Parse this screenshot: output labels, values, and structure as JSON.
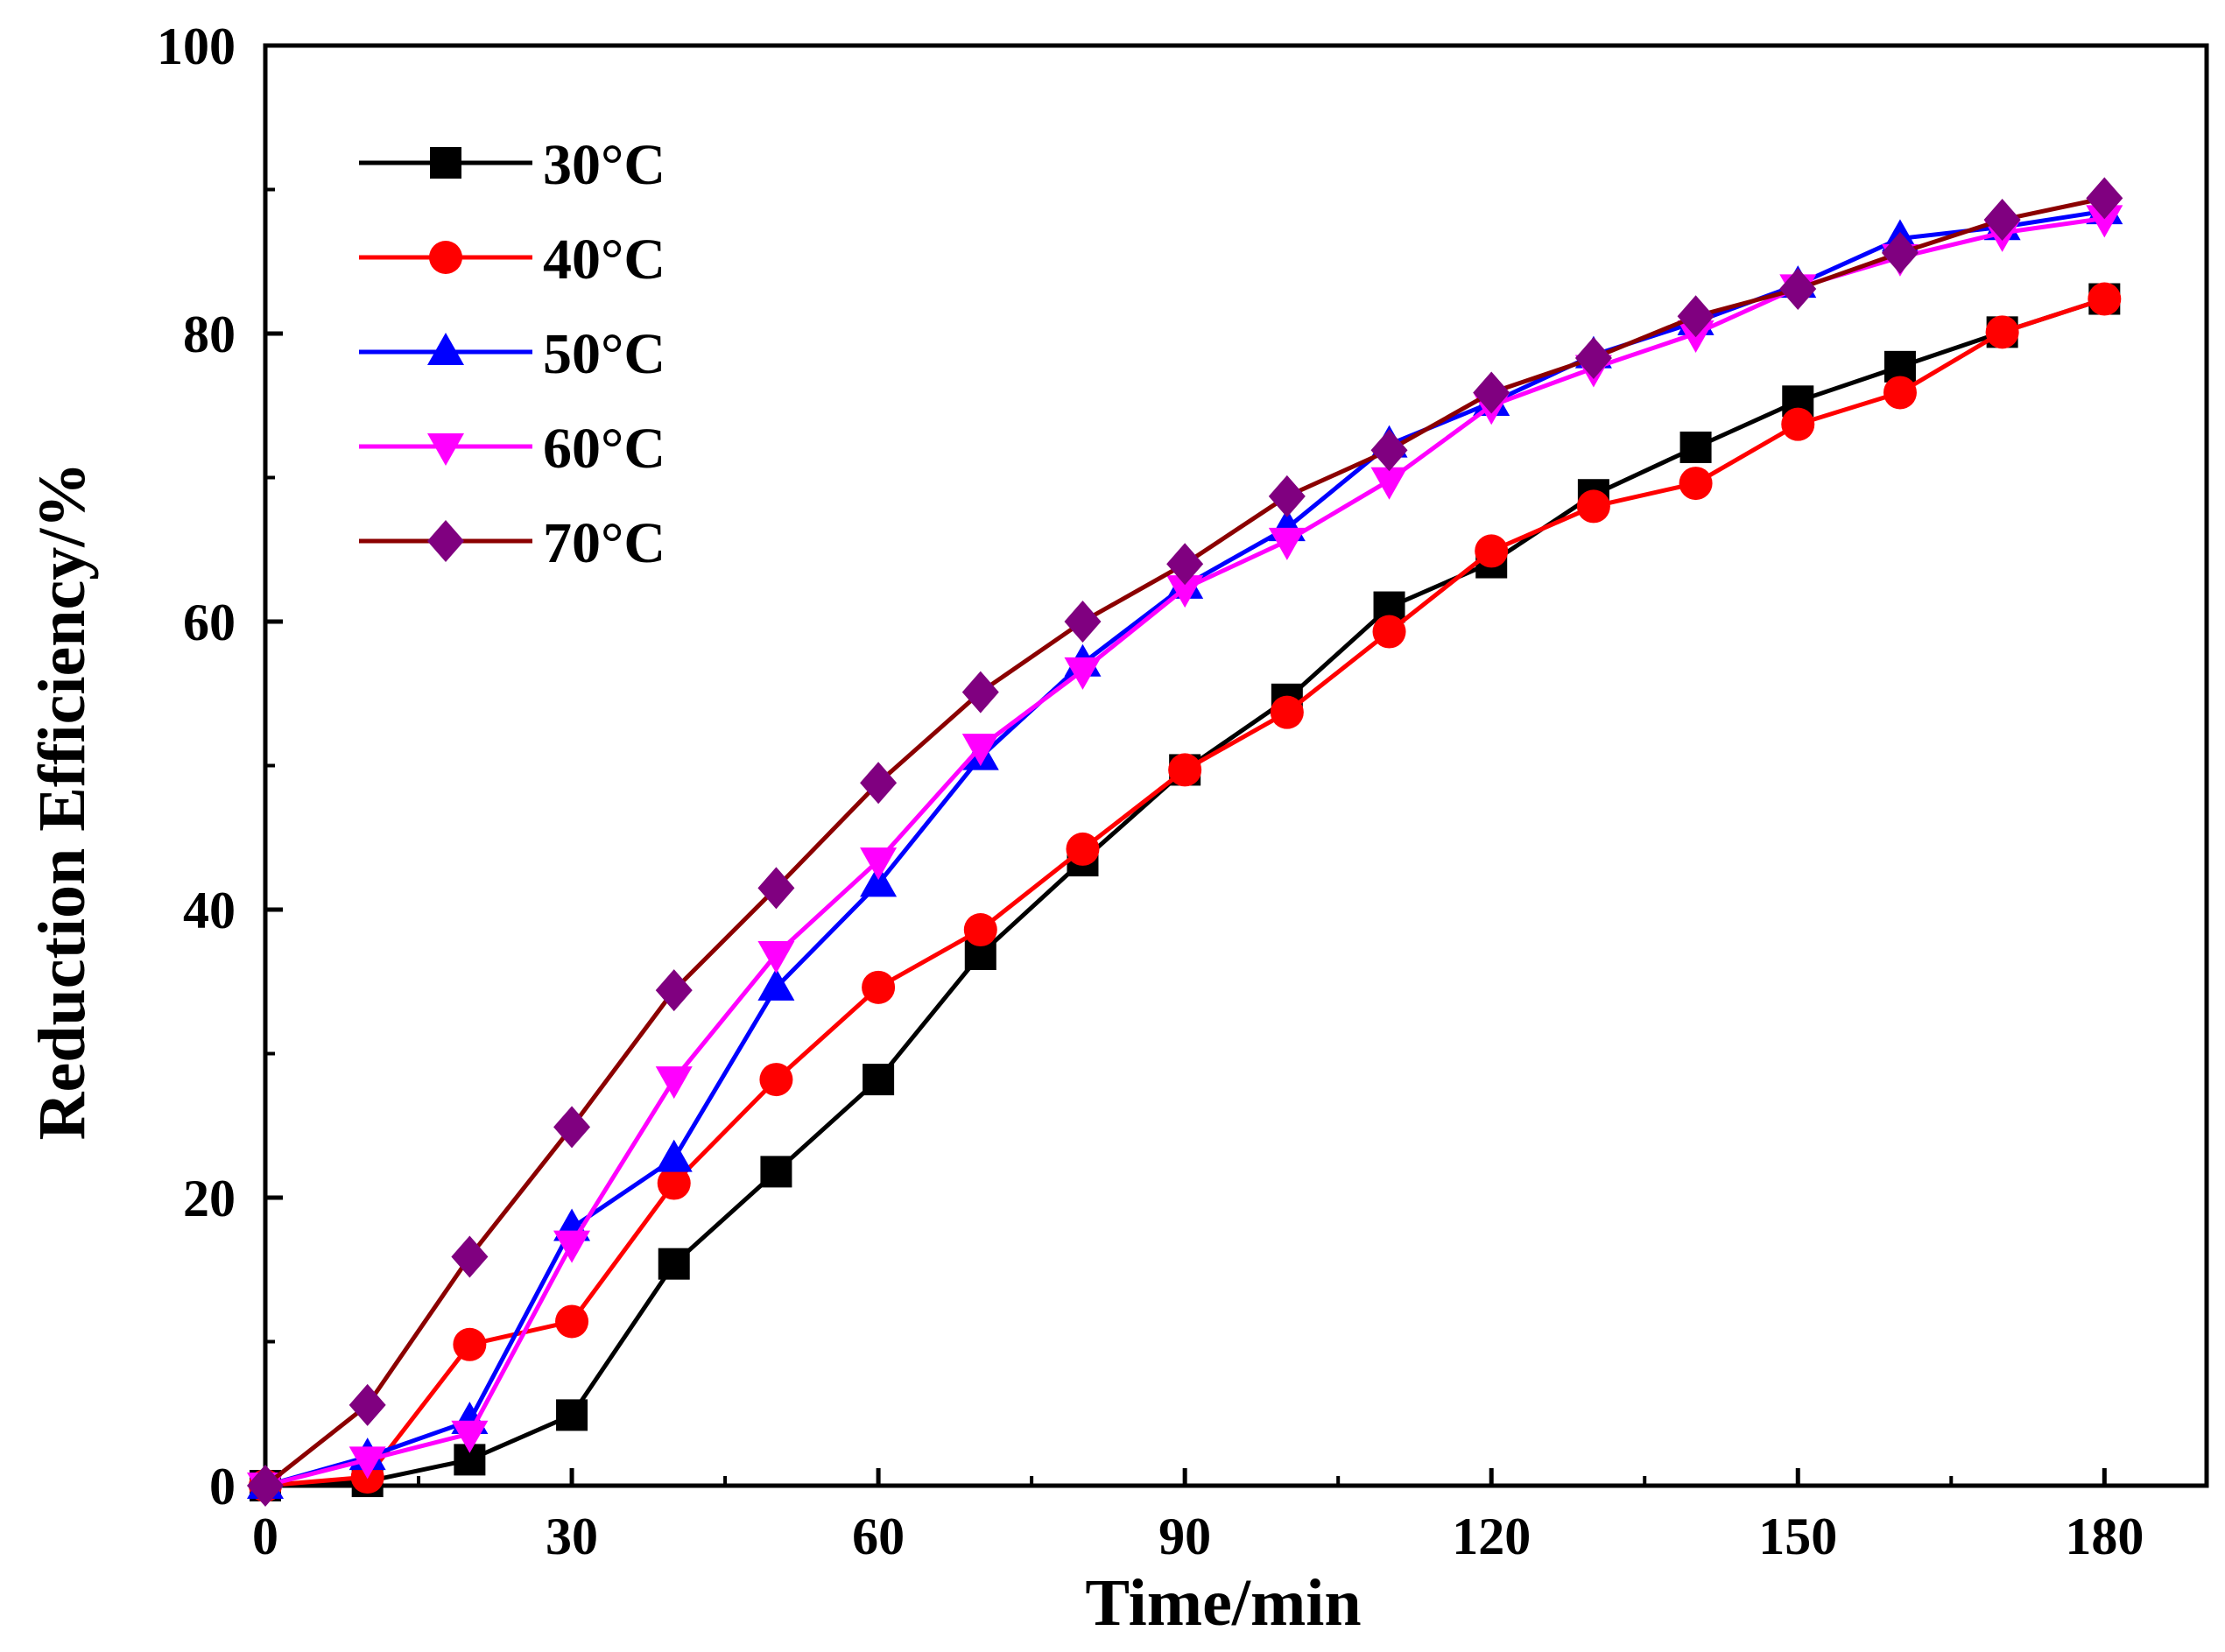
{
  "chart_data": {
    "type": "line",
    "xlabel": "Time/min",
    "ylabel": "Reduction Efficiency/%",
    "xlim": [
      0,
      190
    ],
    "ylim": [
      0,
      100
    ],
    "xticks": [
      0,
      30,
      60,
      90,
      120,
      150,
      180
    ],
    "xtick_labels": [
      "0",
      "30",
      "60",
      "90",
      "120",
      "150",
      "180"
    ],
    "yticks": [
      0,
      20,
      40,
      60,
      80,
      100
    ],
    "ytick_labels": [
      "0",
      "20",
      "40",
      "60",
      "80",
      "100"
    ],
    "grid": false,
    "legend_position": "top-left",
    "x": [
      0,
      10,
      20,
      30,
      40,
      50,
      60,
      70,
      80,
      90,
      100,
      110,
      120,
      130,
      140,
      150,
      160,
      170,
      180
    ],
    "series": [
      {
        "name": "30°C",
        "color": "#000000",
        "marker": "square",
        "values": [
          0,
          0.3,
          1.8,
          4.9,
          15.4,
          21.8,
          28.2,
          36.9,
          43.4,
          49.7,
          54.6,
          61.0,
          64.1,
          68.8,
          72.1,
          75.3,
          77.7,
          80.1,
          82.4
        ]
      },
      {
        "name": "40°C",
        "color": "#ff0000",
        "marker": "circle",
        "values": [
          0,
          0.6,
          9.8,
          11.4,
          21.0,
          28.2,
          34.6,
          38.6,
          44.2,
          49.7,
          53.7,
          59.3,
          64.9,
          68.0,
          69.6,
          73.7,
          75.9,
          80.1,
          82.4
        ]
      },
      {
        "name": "50°C",
        "color": "#0000ff",
        "marker": "triangle-up",
        "values": [
          0,
          2.0,
          4.5,
          17.9,
          22.7,
          34.6,
          41.8,
          50.6,
          57.1,
          62.5,
          66.5,
          72.3,
          75.2,
          78.5,
          80.8,
          83.4,
          86.6,
          87.4,
          88.5
        ]
      },
      {
        "name": "60°C",
        "color": "#ff00ff",
        "marker": "triangle-down",
        "values": [
          0,
          1.8,
          3.6,
          16.8,
          28.2,
          36.9,
          43.4,
          51.3,
          56.6,
          62.3,
          65.6,
          69.8,
          75.0,
          77.6,
          80.0,
          83.2,
          85.3,
          87.0,
          88.0
        ]
      },
      {
        "name": "70°C",
        "color": "#8b0000",
        "marker": "diamond",
        "marker_color": "#800080",
        "values": [
          0,
          5.6,
          15.9,
          24.9,
          34.4,
          41.5,
          48.8,
          55.1,
          60.0,
          64.0,
          68.7,
          71.9,
          75.9,
          78.3,
          81.2,
          83.1,
          85.6,
          87.9,
          89.4
        ]
      }
    ]
  }
}
